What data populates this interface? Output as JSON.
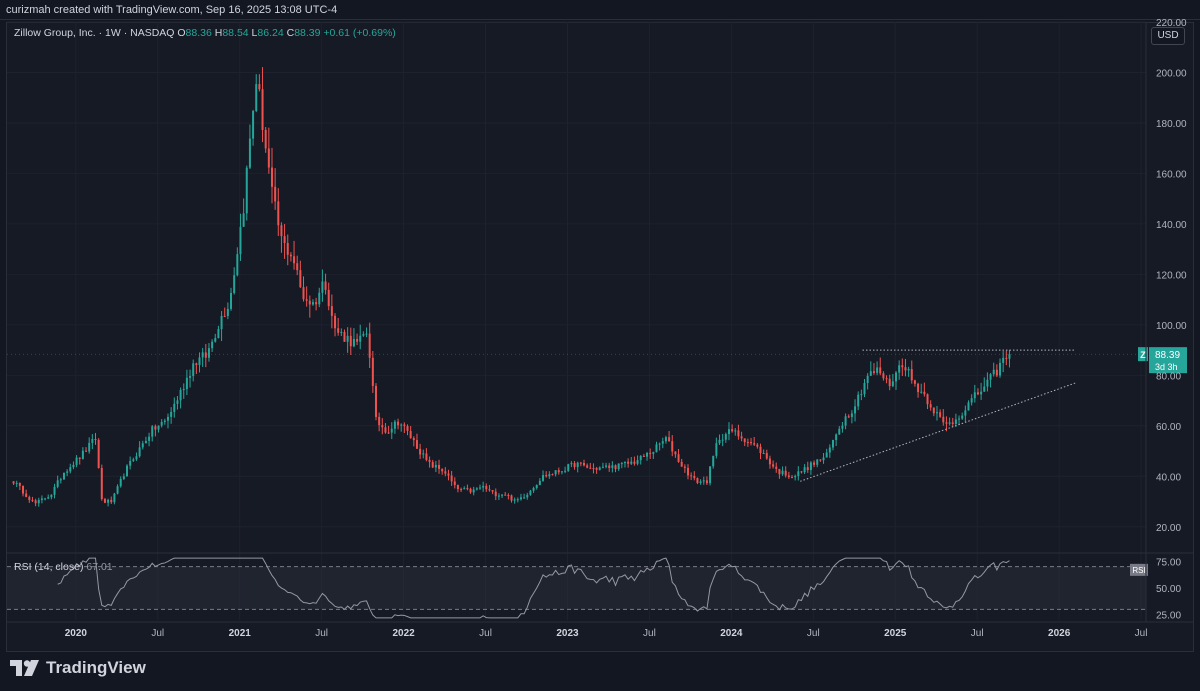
{
  "header": {
    "credit": "curizmah created with TradingView.com, Sep 16, 2025 13:08 UTC-4"
  },
  "legend": {
    "symbol": "Zillow Group, Inc. · 1W · NASDAQ",
    "open_label": "O",
    "open_value": "88.36",
    "high_label": "H",
    "high_value": "88.54",
    "low_label": "L",
    "low_value": "86.24",
    "close_label": "C",
    "close_value": "88.39",
    "change": "+0.61 (+0.69%)"
  },
  "currency_button": "USD",
  "price_badge": {
    "ticker": "Z",
    "price": "88.39",
    "countdown": "3d 3h"
  },
  "rsi": {
    "label": "RSI (14, close)",
    "value": "67.01",
    "badge": "RSI",
    "ticks": [
      "75.00",
      "50.00",
      "25.00"
    ]
  },
  "logo": {
    "text": "TradingView"
  },
  "colors": {
    "background": "#131722",
    "up": "#26a69a",
    "down": "#ef5350",
    "grid": "#1e222d",
    "text": "#b2b5be"
  },
  "chart_data": {
    "type": "candlestick",
    "timeframe": "1W",
    "ylim": [
      10,
      220
    ],
    "y_ticks": [
      "20.00",
      "40.00",
      "60.00",
      "80.00",
      "100.00",
      "120.00",
      "140.00",
      "160.00",
      "180.00",
      "200.00",
      "220.00"
    ],
    "x_ticks": [
      "2020",
      "Jul",
      "2021",
      "Jul",
      "2022",
      "Jul",
      "2023",
      "Jul",
      "2024",
      "Jul",
      "2025",
      "Jul",
      "2026",
      "Jul"
    ],
    "anchors": [
      [
        2019.62,
        38
      ],
      [
        2019.75,
        29
      ],
      [
        2019.85,
        33
      ],
      [
        2019.93,
        42
      ],
      [
        2020.03,
        48
      ],
      [
        2020.12,
        55
      ],
      [
        2020.16,
        30
      ],
      [
        2020.22,
        30
      ],
      [
        2020.3,
        42
      ],
      [
        2020.38,
        50
      ],
      [
        2020.46,
        58
      ],
      [
        2020.55,
        62
      ],
      [
        2020.63,
        72
      ],
      [
        2020.72,
        85
      ],
      [
        2020.8,
        88
      ],
      [
        2020.88,
        102
      ],
      [
        2020.94,
        110
      ],
      [
        2021.02,
        145
      ],
      [
        2021.1,
        198
      ],
      [
        2021.13,
        185
      ],
      [
        2021.2,
        150
      ],
      [
        2021.26,
        132
      ],
      [
        2021.32,
        128
      ],
      [
        2021.38,
        112
      ],
      [
        2021.45,
        108
      ],
      [
        2021.52,
        118
      ],
      [
        2021.58,
        98
      ],
      [
        2021.65,
        95
      ],
      [
        2021.72,
        92
      ],
      [
        2021.78,
        98
      ],
      [
        2021.83,
        62
      ],
      [
        2021.9,
        58
      ],
      [
        2021.97,
        62
      ],
      [
        2022.05,
        55
      ],
      [
        2022.15,
        45
      ],
      [
        2022.25,
        42
      ],
      [
        2022.32,
        35
      ],
      [
        2022.42,
        34
      ],
      [
        2022.48,
        36
      ],
      [
        2022.55,
        33
      ],
      [
        2022.62,
        33
      ],
      [
        2022.68,
        30
      ],
      [
        2022.75,
        33
      ],
      [
        2022.85,
        40
      ],
      [
        2022.95,
        42
      ],
      [
        2023.05,
        45
      ],
      [
        2023.15,
        43
      ],
      [
        2023.3,
        44
      ],
      [
        2023.42,
        46
      ],
      [
        2023.52,
        50
      ],
      [
        2023.6,
        55
      ],
      [
        2023.7,
        44
      ],
      [
        2023.78,
        38
      ],
      [
        2023.85,
        38
      ],
      [
        2023.92,
        55
      ],
      [
        2024.0,
        58
      ],
      [
        2024.08,
        55
      ],
      [
        2024.18,
        50
      ],
      [
        2024.28,
        42
      ],
      [
        2024.38,
        40
      ],
      [
        2024.5,
        45
      ],
      [
        2024.58,
        48
      ],
      [
        2024.66,
        60
      ],
      [
        2024.75,
        68
      ],
      [
        2024.83,
        80
      ],
      [
        2024.9,
        82
      ],
      [
        2024.96,
        76
      ],
      [
        2025.05,
        86
      ],
      [
        2025.1,
        78
      ],
      [
        2025.18,
        72
      ],
      [
        2025.24,
        66
      ],
      [
        2025.3,
        60
      ],
      [
        2025.36,
        62
      ],
      [
        2025.44,
        68
      ],
      [
        2025.52,
        74
      ],
      [
        2025.6,
        80
      ],
      [
        2025.66,
        86
      ],
      [
        2025.7,
        88.39
      ]
    ],
    "resistance_level": 90,
    "support_trendline": [
      [
        2024.42,
        38
      ],
      [
        2026.1,
        77
      ]
    ],
    "rsi_ylim": [
      20,
      80
    ],
    "rsi_levels": [
      70,
      30
    ]
  }
}
